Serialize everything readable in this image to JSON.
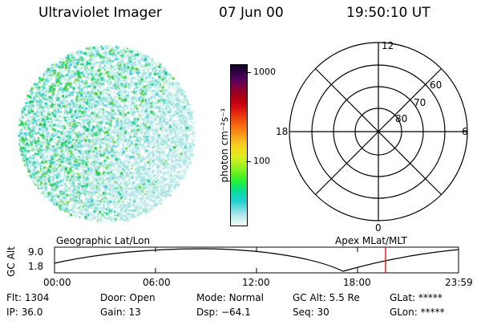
{
  "header": {
    "title": "Ultraviolet Imager",
    "date": "07 Jun 00",
    "time": "19:50:10 UT"
  },
  "colorbar": {
    "unit_label": "photon cm⁻²s⁻¹",
    "ticks": [
      "1000",
      "100"
    ],
    "colors": [
      "#100020",
      "#2a0040",
      "#480058",
      "#700050",
      "#8c0030",
      "#a80018",
      "#c00010",
      "#d81010",
      "#e83010",
      "#f05010",
      "#f87010",
      "#f89018",
      "#f8b020",
      "#f8d020",
      "#f0e020",
      "#d8f020",
      "#b0f020",
      "#80f020",
      "#50f020",
      "#20f040",
      "#10e080",
      "#10d8b0",
      "#20d0d0",
      "#60d8e0",
      "#a0e4e8",
      "#d0f0f0",
      "#f0fafa"
    ]
  },
  "polar": {
    "mlt_labels": {
      "top": "12",
      "left": "18",
      "right": "6",
      "bottom": "0"
    },
    "lat_labels": [
      "60",
      "70",
      "80"
    ]
  },
  "timeline": {
    "left_label": "Geographic Lat/Lon",
    "right_label": "Apex MLat/MLT",
    "ylabel": "GC Alt",
    "yticks": [
      "9.0",
      "1.8"
    ],
    "xticks": [
      "00:00",
      "06:00",
      "12:00",
      "18:00",
      "23:59"
    ],
    "marker_color": "#e02020"
  },
  "footer": {
    "row1": [
      {
        "label": "Flt:",
        "value": "1304"
      },
      {
        "label": "Door:",
        "value": "Open"
      },
      {
        "label": "Mode:",
        "value": "Normal"
      },
      {
        "label": "GC Alt:",
        "value": "5.5 Re"
      },
      {
        "label": "GLat:",
        "value": "*****"
      }
    ],
    "row2": [
      {
        "label": "IP:",
        "value": "36.0"
      },
      {
        "label": "Gain:",
        "value": "13"
      },
      {
        "label": "Dsp:",
        "value": "−64.1"
      },
      {
        "label": "Seq:",
        "value": "30"
      },
      {
        "label": "GLon:",
        "value": "*****"
      }
    ]
  }
}
